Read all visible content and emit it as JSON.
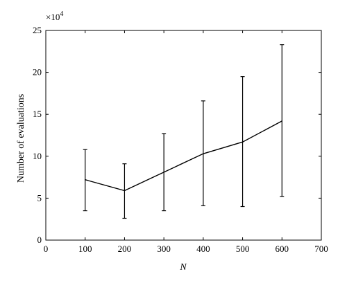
{
  "chart_data": {
    "type": "line",
    "xlabel": "N",
    "ylabel": "Number of evaluations",
    "y_scale_label": {
      "base": "×10",
      "exponent": "4"
    },
    "xlim": [
      0,
      700
    ],
    "ylim": [
      0,
      25
    ],
    "xticks": [
      0,
      100,
      200,
      300,
      400,
      500,
      600,
      700
    ],
    "yticks": [
      0,
      5,
      10,
      15,
      20,
      25
    ],
    "grid": false,
    "x": [
      100,
      200,
      300,
      400,
      500,
      600
    ],
    "series": [
      {
        "values": [
          7.2,
          5.9,
          8.1,
          10.3,
          11.7,
          14.2
        ],
        "error_low": [
          3.5,
          2.6,
          3.5,
          4.1,
          4.0,
          5.2
        ],
        "error_high": [
          10.8,
          9.1,
          12.7,
          16.6,
          19.5,
          23.3
        ]
      }
    ],
    "colors": {
      "line": "#000000",
      "axes": "#000000"
    }
  }
}
